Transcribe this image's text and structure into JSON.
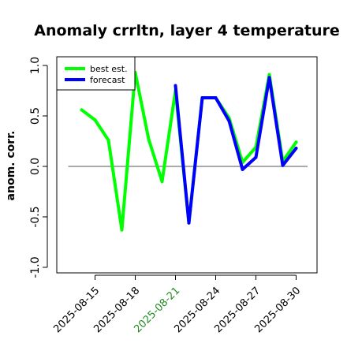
{
  "chart_data": {
    "type": "line",
    "title": "Anomaly crrltn, layer 4 temperature",
    "ylabel": "anom. corr.",
    "xlabel": "",
    "ylim": [
      -1.0,
      1.0
    ],
    "yticks": [
      "-1.0",
      "-0.5",
      "0.0",
      "0.5",
      "1.0"
    ],
    "reference_line_y": 0.0,
    "legend_position": "top-left",
    "grid": false,
    "x": [
      "2025-08-14",
      "2025-08-15",
      "2025-08-16",
      "2025-08-17",
      "2025-08-18",
      "2025-08-19",
      "2025-08-20",
      "2025-08-21",
      "2025-08-22",
      "2025-08-23",
      "2025-08-24",
      "2025-08-25",
      "2025-08-26",
      "2025-08-27",
      "2025-08-28",
      "2025-08-29",
      "2025-08-30"
    ],
    "xtick_labels": [
      "2025-08-15",
      "2025-08-18",
      "2025-08-21",
      "2025-08-24",
      "2025-08-27",
      "2025-08-30"
    ],
    "highlighted_xtick": "2025-08-21",
    "series": [
      {
        "name": "best est.",
        "color": "#00ff00",
        "values": [
          0.56,
          0.46,
          0.26,
          -0.63,
          0.93,
          0.27,
          -0.15,
          0.75,
          -0.56,
          0.68,
          0.68,
          0.48,
          0.04,
          0.19,
          0.91,
          0.05,
          0.24
        ]
      },
      {
        "name": "forecast",
        "color": "#0000ff",
        "values": [
          null,
          null,
          null,
          null,
          null,
          null,
          null,
          0.8,
          -0.56,
          0.68,
          0.68,
          0.45,
          -0.03,
          0.09,
          0.88,
          0.01,
          0.18
        ]
      }
    ]
  },
  "colors": {
    "highlight_tick": "#228B22",
    "axis": "#000000",
    "reference_line": "#555555"
  }
}
